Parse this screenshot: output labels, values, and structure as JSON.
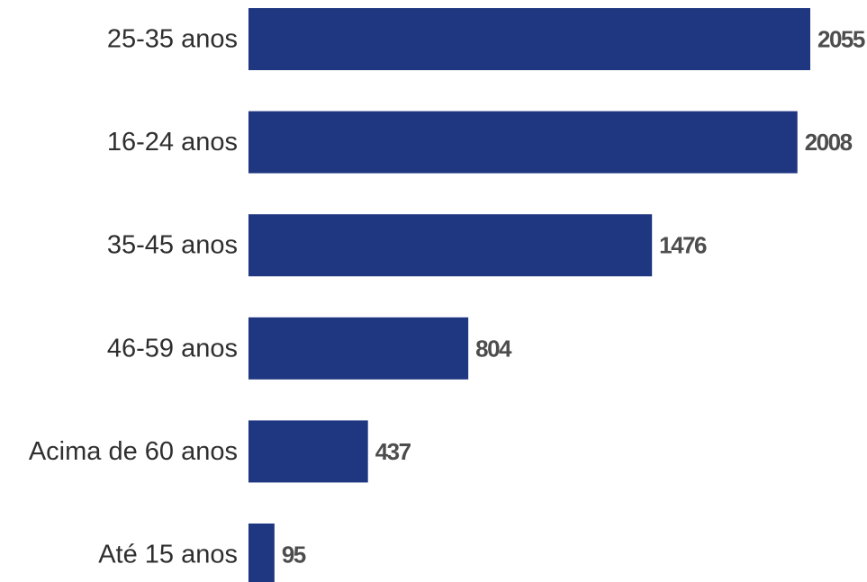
{
  "chart_data": {
    "type": "bar",
    "orientation": "horizontal",
    "categories": [
      "25-35 anos",
      "16-24 anos",
      "35-45 anos",
      "46-59 anos",
      "Acima de 60 anos",
      "Até 15 anos"
    ],
    "values": [
      2055,
      2008,
      1476,
      804,
      437,
      95
    ],
    "value_labels": [
      "2055",
      "2008",
      "1476",
      "804",
      "437",
      "95"
    ],
    "title": "",
    "xlabel": "",
    "ylabel": "",
    "xlim": [
      0,
      2055
    ],
    "grid": false,
    "legend": "none",
    "colors": {
      "bar": "#1f3681",
      "category_text": "#2f2f2f",
      "value_text": "#4d4d4d"
    }
  }
}
